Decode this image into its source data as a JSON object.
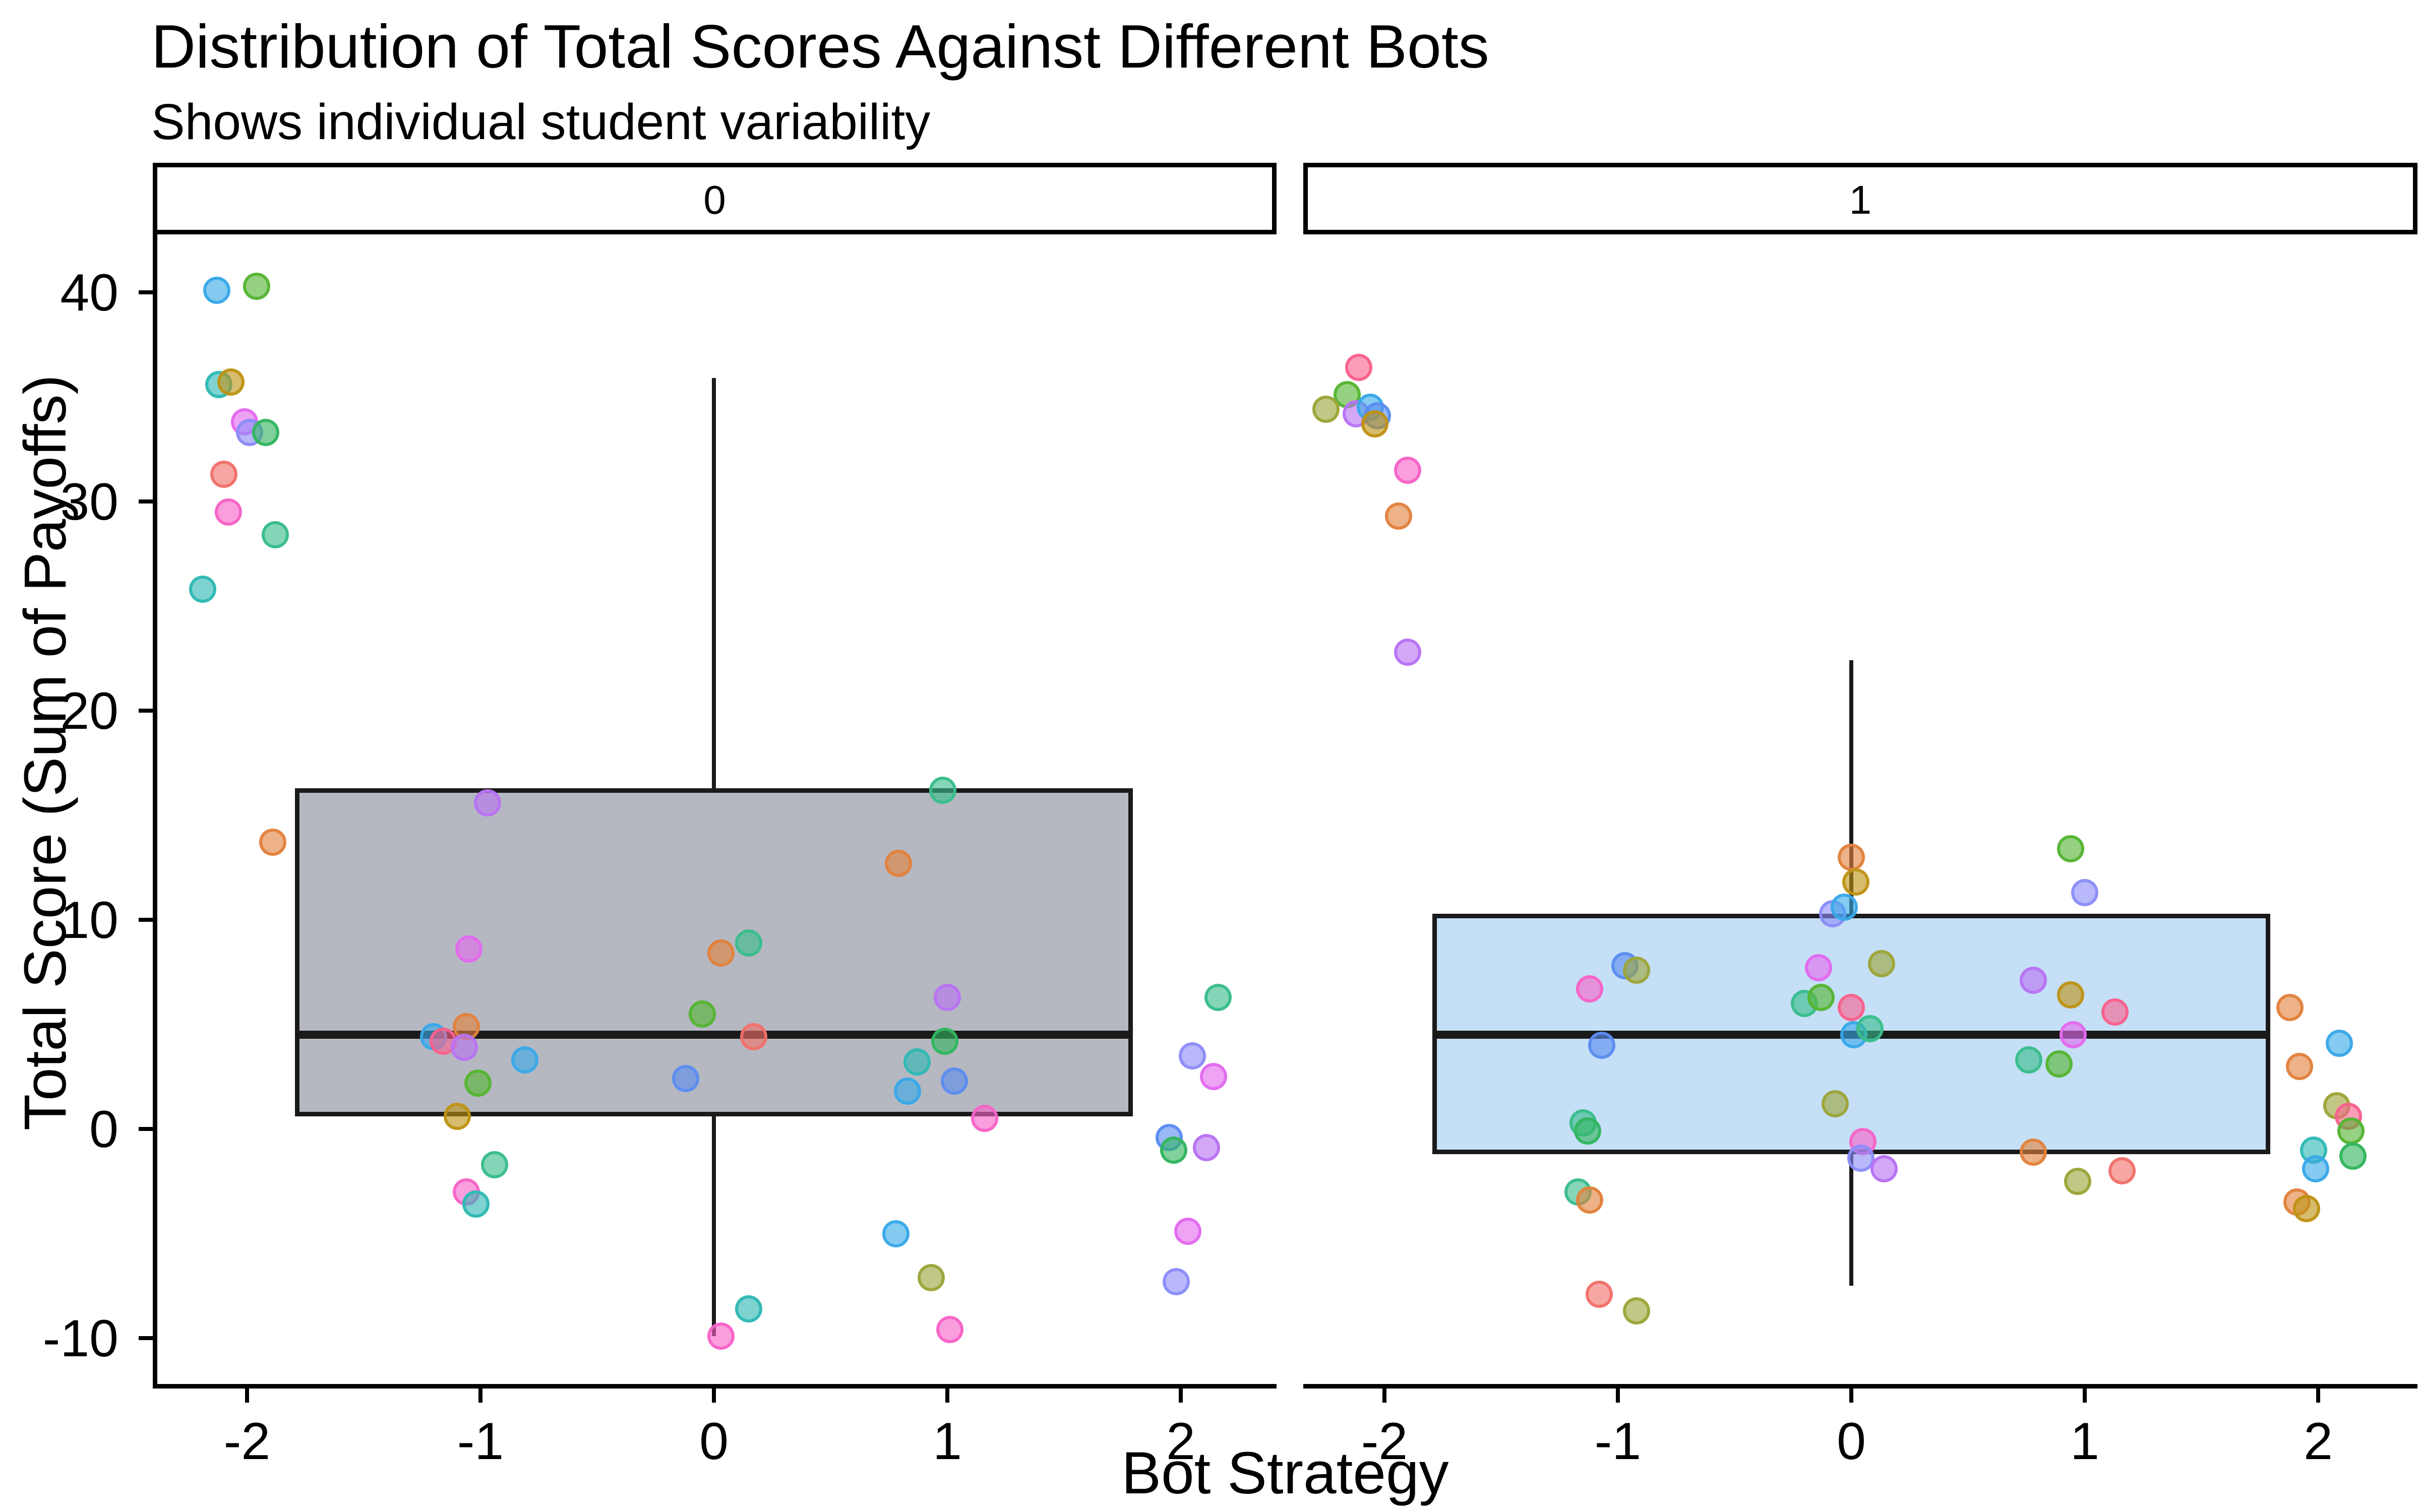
{
  "chart_data": {
    "type": "boxplot",
    "title": "Distribution of Total Scores Against Different Bots",
    "subtitle": "Shows individual student variability",
    "xlabel": "Bot Strategy",
    "ylabel": "Total Score (Sum of Payoffs)",
    "legend": "none",
    "grid": "off",
    "x_ticks": [
      -2,
      -1,
      0,
      1,
      2
    ],
    "y_ticks": [
      40,
      30,
      20,
      10,
      0,
      -10
    ],
    "x_range": [
      -2.4,
      2.41
    ],
    "y_range": [
      -12.2,
      42.9
    ],
    "palette": {
      "salmon": "#F0716A",
      "orange": "#E2823D",
      "gold": "#BE9315",
      "olive": "#9CA53A",
      "green": "#55B433",
      "emerald": "#33B55F",
      "springgreen": "#3ABD8C",
      "teal": "#2FB8B4",
      "sky": "#3AA9E9",
      "blue": "#5B8DEF",
      "periwinkle": "#8C8DF8",
      "violet": "#B873F2",
      "magenta": "#E36AEE",
      "pink": "#F763C8",
      "rose": "#F8618C"
    },
    "facets": [
      {
        "label": "0",
        "box": {
          "fill": "#B5B8C1",
          "center": 0,
          "half_width": 1.795,
          "q1": 0.6,
          "median": 4.5,
          "q3": 16.3,
          "whisker_low": -9.9,
          "whisker_high": 35.9
        },
        "points": [
          [
            -2.13,
            40.1,
            "sky"
          ],
          [
            -1.96,
            40.3,
            "green"
          ],
          [
            -2.12,
            35.6,
            "teal"
          ],
          [
            -2.07,
            35.7,
            "gold"
          ],
          [
            -2.01,
            33.8,
            "magenta"
          ],
          [
            -1.99,
            33.3,
            "periwinkle"
          ],
          [
            -1.92,
            33.3,
            "emerald"
          ],
          [
            -2.1,
            31.3,
            "salmon"
          ],
          [
            -2.08,
            29.5,
            "pink"
          ],
          [
            -1.88,
            28.4,
            "springgreen"
          ],
          [
            -2.19,
            25.8,
            "teal"
          ],
          [
            -0.97,
            15.6,
            "violet"
          ],
          [
            0.98,
            16.2,
            "springgreen"
          ],
          [
            -1.89,
            13.7,
            "orange"
          ],
          [
            0.79,
            12.7,
            "orange"
          ],
          [
            -1.05,
            8.6,
            "magenta"
          ],
          [
            0.03,
            8.4,
            "orange"
          ],
          [
            0.15,
            8.9,
            "springgreen"
          ],
          [
            -0.05,
            5.5,
            "green"
          ],
          [
            1.0,
            6.3,
            "violet"
          ],
          [
            -1.06,
            4.9,
            "orange"
          ],
          [
            -1.2,
            4.4,
            "sky"
          ],
          [
            -1.16,
            4.2,
            "rose"
          ],
          [
            -1.07,
            3.9,
            "violet"
          ],
          [
            0.17,
            4.4,
            "salmon"
          ],
          [
            0.99,
            4.2,
            "emerald"
          ],
          [
            -0.81,
            3.3,
            "sky"
          ],
          [
            0.87,
            3.2,
            "teal"
          ],
          [
            1.03,
            2.3,
            "blue"
          ],
          [
            -0.12,
            2.4,
            "blue"
          ],
          [
            0.83,
            1.8,
            "sky"
          ],
          [
            -1.01,
            2.2,
            "green"
          ],
          [
            -1.1,
            0.6,
            "gold"
          ],
          [
            1.16,
            0.5,
            "pink"
          ],
          [
            -0.94,
            -1.7,
            "springgreen"
          ],
          [
            -1.06,
            -3.0,
            "pink"
          ],
          [
            -1.02,
            -3.6,
            "teal"
          ],
          [
            0.78,
            -5.0,
            "sky"
          ],
          [
            0.93,
            -7.1,
            "olive"
          ],
          [
            0.15,
            -8.6,
            "teal"
          ],
          [
            0.03,
            -9.9,
            "pink"
          ],
          [
            1.01,
            -9.6,
            "pink"
          ],
          [
            2.16,
            6.3,
            "springgreen"
          ],
          [
            2.05,
            3.5,
            "periwinkle"
          ],
          [
            2.14,
            2.5,
            "magenta"
          ],
          [
            1.95,
            -0.4,
            "blue"
          ],
          [
            1.97,
            -1.0,
            "emerald"
          ],
          [
            2.11,
            -0.9,
            "violet"
          ],
          [
            2.03,
            -4.9,
            "magenta"
          ],
          [
            1.98,
            -7.3,
            "periwinkle"
          ]
        ]
      },
      {
        "label": "1",
        "box": {
          "fill": "#C5DFF6",
          "center": 0,
          "half_width": 1.795,
          "q1": -1.2,
          "median": 4.5,
          "q3": 10.3,
          "whisker_low": -7.5,
          "whisker_high": 22.4
        },
        "points": [
          [
            -2.11,
            36.4,
            "rose"
          ],
          [
            -2.16,
            35.1,
            "green"
          ],
          [
            -2.25,
            34.4,
            "olive"
          ],
          [
            -2.12,
            34.2,
            "violet"
          ],
          [
            -2.06,
            34.5,
            "sky"
          ],
          [
            -2.03,
            34.1,
            "blue"
          ],
          [
            -2.04,
            33.7,
            "gold"
          ],
          [
            -1.9,
            31.5,
            "pink"
          ],
          [
            -1.94,
            29.3,
            "orange"
          ],
          [
            -1.9,
            22.8,
            "violet"
          ],
          [
            0.0,
            13.0,
            "orange"
          ],
          [
            0.02,
            11.8,
            "gold"
          ],
          [
            -0.08,
            10.3,
            "periwinkle"
          ],
          [
            -0.03,
            10.6,
            "sky"
          ],
          [
            0.94,
            13.4,
            "green"
          ],
          [
            1.0,
            11.3,
            "periwinkle"
          ],
          [
            -0.97,
            7.8,
            "blue"
          ],
          [
            -0.92,
            7.6,
            "olive"
          ],
          [
            0.13,
            7.9,
            "olive"
          ],
          [
            -1.12,
            6.7,
            "pink"
          ],
          [
            -0.14,
            7.7,
            "magenta"
          ],
          [
            -0.2,
            6.0,
            "springgreen"
          ],
          [
            -0.13,
            6.3,
            "green"
          ],
          [
            0.0,
            5.8,
            "rose"
          ],
          [
            0.78,
            7.1,
            "violet"
          ],
          [
            0.94,
            6.4,
            "gold"
          ],
          [
            1.13,
            5.6,
            "rose"
          ],
          [
            0.95,
            4.5,
            "magenta"
          ],
          [
            0.01,
            4.5,
            "sky"
          ],
          [
            0.08,
            4.8,
            "springgreen"
          ],
          [
            -1.07,
            4.0,
            "blue"
          ],
          [
            0.76,
            3.3,
            "springgreen"
          ],
          [
            0.89,
            3.1,
            "green"
          ],
          [
            -0.07,
            1.2,
            "olive"
          ],
          [
            -1.15,
            0.3,
            "springgreen"
          ],
          [
            -1.13,
            -0.1,
            "emerald"
          ],
          [
            0.78,
            -1.1,
            "orange"
          ],
          [
            0.05,
            -0.6,
            "pink"
          ],
          [
            0.04,
            -1.4,
            "periwinkle"
          ],
          [
            0.14,
            -1.9,
            "violet"
          ],
          [
            0.97,
            -2.5,
            "olive"
          ],
          [
            1.16,
            -2.0,
            "salmon"
          ],
          [
            -1.17,
            -3.0,
            "springgreen"
          ],
          [
            -1.12,
            -3.4,
            "orange"
          ],
          [
            -1.08,
            -7.9,
            "salmon"
          ],
          [
            -0.92,
            -8.7,
            "olive"
          ],
          [
            1.88,
            5.8,
            "orange"
          ],
          [
            2.09,
            4.1,
            "sky"
          ],
          [
            1.92,
            3.0,
            "orange"
          ],
          [
            2.08,
            1.1,
            "olive"
          ],
          [
            2.13,
            0.6,
            "rose"
          ],
          [
            2.14,
            -0.1,
            "green"
          ],
          [
            1.98,
            -1.0,
            "teal"
          ],
          [
            2.15,
            -1.3,
            "emerald"
          ],
          [
            1.99,
            -1.9,
            "sky"
          ],
          [
            1.91,
            -3.5,
            "orange"
          ],
          [
            1.95,
            -3.8,
            "gold"
          ]
        ]
      }
    ]
  }
}
